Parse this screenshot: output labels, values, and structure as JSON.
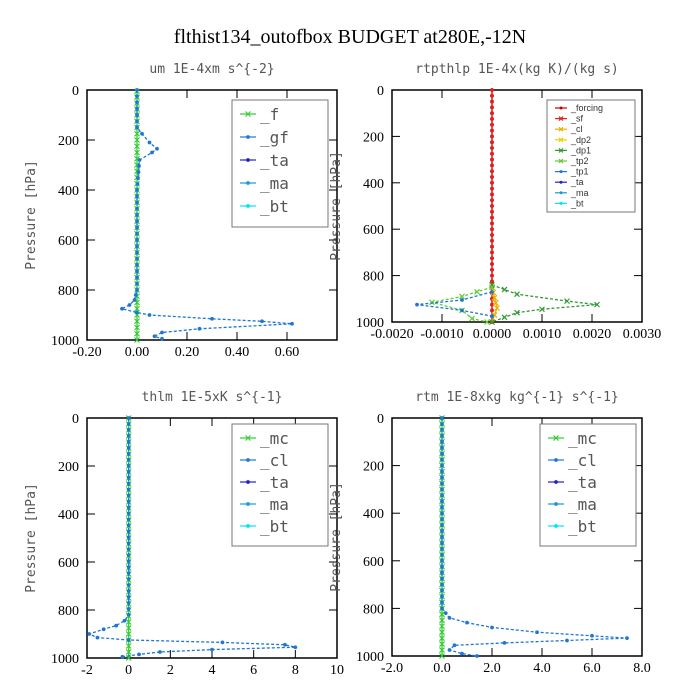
{
  "title": "flthist134_outofbox  BUDGET at280E,-12N",
  "chart_data": [
    {
      "type": "line",
      "title": "um  1E-4xm s^{-2}",
      "ylabel": "Pressure [hPa]",
      "xlim": [
        -0.2,
        0.8
      ],
      "ylim": [
        1000,
        0
      ],
      "xticks": [
        -0.2,
        0.0,
        0.2,
        0.4,
        0.6
      ],
      "xtick_labels": [
        "-0.20",
        "0.00",
        "0.20",
        "0.40",
        "0.60"
      ],
      "yticks": [
        0,
        200,
        400,
        600,
        800,
        1000
      ],
      "legend_style": "big",
      "series": [
        {
          "name": "_f",
          "color": "#33cc33",
          "dashed": false,
          "points": [
            [
              0,
              5
            ],
            [
              0,
              100
            ],
            [
              0,
              200
            ],
            [
              0,
              300
            ],
            [
              0,
              400
            ],
            [
              0,
              500
            ],
            [
              0,
              600
            ],
            [
              0,
              700
            ],
            [
              0,
              800
            ],
            [
              0,
              900
            ],
            [
              0,
              1000
            ]
          ]
        },
        {
          "name": "_gf",
          "color": "#1f77d4",
          "dashed": true,
          "points": [
            [
              0.0,
              0
            ],
            [
              0.0,
              150
            ],
            [
              0.02,
              175
            ],
            [
              0.05,
              210
            ],
            [
              0.08,
              235
            ],
            [
              0.06,
              250
            ],
            [
              0.01,
              280
            ],
            [
              0.0,
              400
            ],
            [
              0.0,
              800
            ],
            [
              -0.01,
              840
            ],
            [
              -0.03,
              860
            ],
            [
              -0.06,
              875
            ],
            [
              0.0,
              890
            ],
            [
              0.05,
              900
            ],
            [
              0.3,
              915
            ],
            [
              0.5,
              925
            ],
            [
              0.62,
              935
            ],
            [
              0.25,
              955
            ],
            [
              0.1,
              970
            ],
            [
              0.07,
              985
            ],
            [
              0.1,
              995
            ]
          ]
        },
        {
          "name": "_ta",
          "color": "#2222cc",
          "dashed": false,
          "points": []
        },
        {
          "name": "_ma",
          "color": "#1a9ad6",
          "dashed": false,
          "points": []
        },
        {
          "name": "_bt",
          "color": "#00e5ee",
          "dashed": false,
          "points": []
        }
      ]
    },
    {
      "type": "line",
      "title": "rtpthlp  1E-4x(kg K)/(kg s)",
      "ylabel": "Pressure [hPa]",
      "xlim": [
        -0.002,
        0.003
      ],
      "ylim": [
        1000,
        0
      ],
      "xticks": [
        -0.002,
        -0.001,
        0.0,
        0.001,
        0.002,
        0.003
      ],
      "xtick_labels": [
        "-0.0020",
        "-0.0010",
        "0.0000",
        "0.0010",
        "0.0020",
        "0.0030"
      ],
      "yticks": [
        0,
        200,
        400,
        600,
        800,
        1000
      ],
      "legend_style": "small",
      "series": [
        {
          "name": "_forcing",
          "color": "#cc0000",
          "dashed": false,
          "points": [
            [
              0,
              0
            ],
            [
              0,
              200
            ],
            [
              0,
              400
            ],
            [
              0,
              600
            ],
            [
              0,
              800
            ],
            [
              0,
              1000
            ]
          ]
        },
        {
          "name": "_sf",
          "color": "#dd2222",
          "dashed": false,
          "points": [
            [
              0,
              0
            ],
            [
              0,
              500
            ],
            [
              0,
              1000
            ]
          ]
        },
        {
          "name": "_cl",
          "color": "#e8b000",
          "dashed": false,
          "points": [
            [
              0,
              850
            ],
            [
              0.0001,
              940
            ],
            [
              0,
              1000
            ]
          ]
        },
        {
          "name": "_dp2",
          "color": "#f0d000",
          "dashed": false,
          "points": []
        },
        {
          "name": "_dp1",
          "color": "#339933",
          "dashed": true,
          "points": [
            [
              0,
              840
            ],
            [
              0.0005,
              880
            ],
            [
              0.0015,
              910
            ],
            [
              0.0021,
              925
            ],
            [
              0.001,
              945
            ],
            [
              0.0005,
              960
            ],
            [
              0,
              1000
            ]
          ]
        },
        {
          "name": "_tp2",
          "color": "#66cc33",
          "dashed": true,
          "points": [
            [
              0,
              850
            ],
            [
              -0.0006,
              890
            ],
            [
              -0.0012,
              915
            ],
            [
              -0.0006,
              950
            ],
            [
              -0.0004,
              985
            ],
            [
              -0.0001,
              1000
            ]
          ]
        },
        {
          "name": "_tp1",
          "color": "#1f77d4",
          "dashed": true,
          "points": [
            [
              0,
              870
            ],
            [
              -0.0006,
              905
            ],
            [
              -0.0015,
              925
            ],
            [
              -0.0006,
              950
            ],
            [
              0,
              975
            ]
          ]
        },
        {
          "name": "_ta",
          "color": "#2222cc",
          "dashed": false,
          "points": []
        },
        {
          "name": "_ma",
          "color": "#1a9ad6",
          "dashed": false,
          "points": []
        },
        {
          "name": "_bt",
          "color": "#00e5ee",
          "dashed": false,
          "points": []
        }
      ]
    },
    {
      "type": "line",
      "title": "thlm  1E-5xK s^{-1}",
      "ylabel": "Pressure [hPa]",
      "xlim": [
        -2,
        10
      ],
      "ylim": [
        1000,
        0
      ],
      "xticks": [
        -2,
        0,
        2,
        4,
        6,
        8,
        10
      ],
      "xtick_labels": [
        "-2",
        "0",
        "2",
        "4",
        "6",
        "8",
        "10"
      ],
      "yticks": [
        0,
        200,
        400,
        600,
        800,
        1000
      ],
      "legend_style": "big",
      "series": [
        {
          "name": "_mc",
          "color": "#33cc33",
          "dashed": false,
          "points": [
            [
              0,
              0
            ],
            [
              0,
              200
            ],
            [
              0,
              400
            ],
            [
              0,
              600
            ],
            [
              0,
              800
            ],
            [
              0,
              1000
            ]
          ]
        },
        {
          "name": "_cl",
          "color": "#1f77d4",
          "dashed": true,
          "points": [
            [
              0,
              0
            ],
            [
              0,
              820
            ],
            [
              -0.2,
              845
            ],
            [
              -0.6,
              865
            ],
            [
              -1.2,
              880
            ],
            [
              -1.9,
              900
            ],
            [
              -1.5,
              915
            ],
            [
              0,
              925
            ],
            [
              4.5,
              935
            ],
            [
              7.5,
              945
            ],
            [
              8,
              955
            ],
            [
              4,
              965
            ],
            [
              1.5,
              975
            ],
            [
              0.5,
              985
            ],
            [
              -0.3,
              995
            ]
          ]
        },
        {
          "name": "_ta",
          "color": "#2222cc",
          "dashed": false,
          "points": []
        },
        {
          "name": "_ma",
          "color": "#1a9ad6",
          "dashed": false,
          "points": []
        },
        {
          "name": "_bt",
          "color": "#00e5ee",
          "dashed": false,
          "points": []
        }
      ]
    },
    {
      "type": "line",
      "title": "rtm  1E-8xkg kg^{-1} s^{-1}",
      "ylabel": "Pressure [hPa]",
      "xlim": [
        -2,
        8
      ],
      "ylim": [
        1000,
        0
      ],
      "xticks": [
        -2,
        0,
        2,
        4,
        6,
        8
      ],
      "xtick_labels": [
        "-2.0",
        "0.0",
        "2.0",
        "4.0",
        "6.0",
        "8.0"
      ],
      "yticks": [
        0,
        200,
        400,
        600,
        800,
        1000
      ],
      "legend_style": "big",
      "series": [
        {
          "name": "_mc",
          "color": "#33cc33",
          "dashed": false,
          "points": [
            [
              0,
              0
            ],
            [
              0,
              200
            ],
            [
              0,
              400
            ],
            [
              0,
              600
            ],
            [
              0,
              800
            ],
            [
              0,
              1000
            ]
          ]
        },
        {
          "name": "_cl",
          "color": "#1f77d4",
          "dashed": true,
          "points": [
            [
              0,
              0
            ],
            [
              0,
              800
            ],
            [
              0.3,
              840
            ],
            [
              1.0,
              860
            ],
            [
              2.0,
              880
            ],
            [
              3.8,
              900
            ],
            [
              6.0,
              915
            ],
            [
              7.4,
              925
            ],
            [
              5.0,
              935
            ],
            [
              2.5,
              945
            ],
            [
              0.5,
              955
            ],
            [
              0.3,
              975
            ],
            [
              0.8,
              990
            ],
            [
              1.4,
              1000
            ]
          ]
        },
        {
          "name": "_ta",
          "color": "#2222cc",
          "dashed": false,
          "points": []
        },
        {
          "name": "_ma",
          "color": "#1a9ad6",
          "dashed": false,
          "points": []
        },
        {
          "name": "_bt",
          "color": "#00e5ee",
          "dashed": false,
          "points": []
        }
      ]
    }
  ]
}
